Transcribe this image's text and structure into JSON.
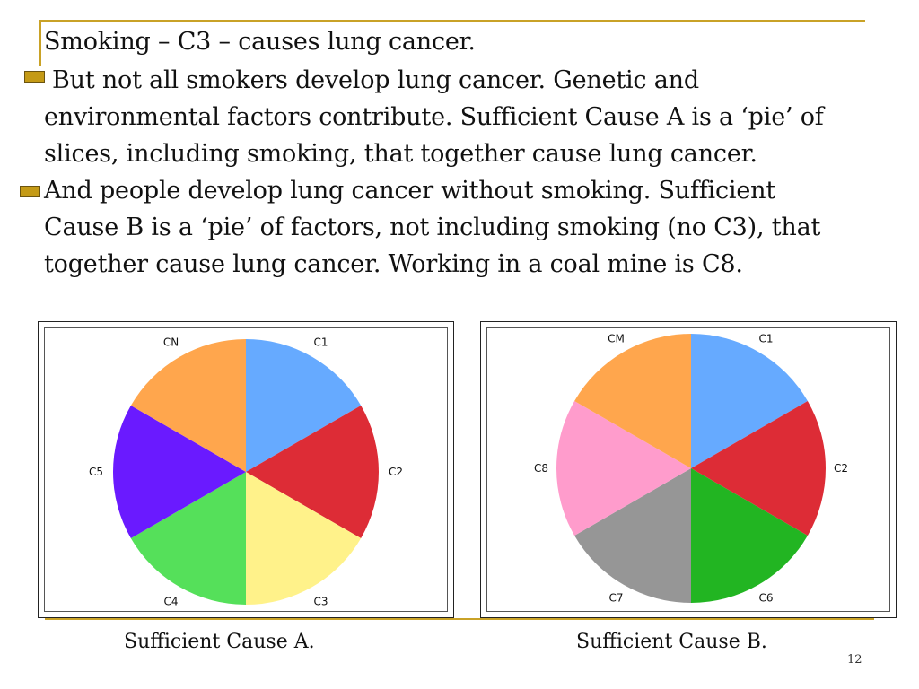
{
  "slide": {
    "lines": [
      "Smoking – C3 – causes lung cancer.",
      " But not all smokers develop lung cancer.  Genetic and",
      "environmental factors contribute. Sufficient Cause A  is a ‘pie’ of",
      "slices, including smoking, that together cause lung cancer.",
      "And people develop lung cancer without smoking. Sufficient",
      "Cause B is a ‘pie’ of factors, not including smoking (no C3), that",
      "together cause lung cancer. Working in a coal mine is C8."
    ],
    "caption_a": "Sufficient Cause A.",
    "caption_b": "Sufficient Cause B.",
    "page_number": "12",
    "accent_color": "#c9a227",
    "bullet_color": "#c49a16"
  },
  "chart_data": [
    {
      "type": "pie",
      "slices": [
        {
          "label": "C1",
          "value": 1,
          "color": "#66aaff"
        },
        {
          "label": "C2",
          "value": 1,
          "color": "#dd2c36"
        },
        {
          "label": "C3",
          "value": 1,
          "color": "#fff28a"
        },
        {
          "label": "C4",
          "value": 1,
          "color": "#55e05a"
        },
        {
          "label": "C5",
          "value": 1,
          "color": "#6a1aff"
        },
        {
          "label": "CN",
          "value": 1,
          "color": "#ffa64d"
        }
      ]
    },
    {
      "type": "pie",
      "slices": [
        {
          "label": "C1",
          "value": 1,
          "color": "#66aaff"
        },
        {
          "label": "C2",
          "value": 1,
          "color": "#dd2c36"
        },
        {
          "label": "C6",
          "value": 1,
          "color": "#22b522"
        },
        {
          "label": "C7",
          "value": 1,
          "color": "#969696"
        },
        {
          "label": "C8",
          "value": 1,
          "color": "#ff9ccc"
        },
        {
          "label": "CM",
          "value": 1,
          "color": "#ffa64d"
        }
      ]
    }
  ]
}
